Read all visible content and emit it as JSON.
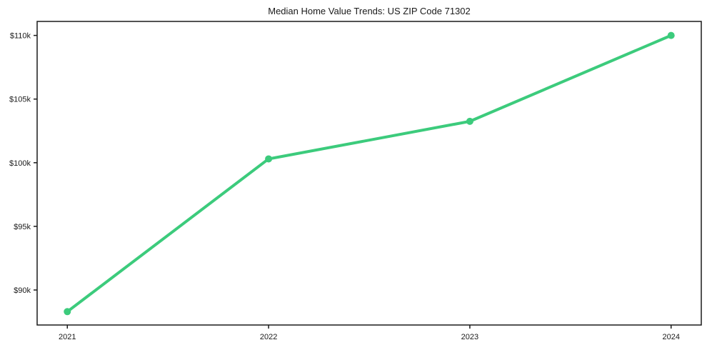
{
  "chart_data": {
    "type": "line",
    "title": "Median Home Value Trends: US ZIP Code 71302",
    "categories": [
      "2021",
      "2022",
      "2023",
      "2024"
    ],
    "values": [
      88300,
      100300,
      103250,
      110000
    ],
    "xlabel": "",
    "ylabel": "",
    "ylim": [
      87250,
      111100
    ],
    "yticks": [
      {
        "value": 90000,
        "label": "$90k"
      },
      {
        "value": 95000,
        "label": "$95k"
      },
      {
        "value": 100000,
        "label": "$100k"
      },
      {
        "value": 105000,
        "label": "$105k"
      },
      {
        "value": 110000,
        "label": "$110k"
      }
    ],
    "grid": false,
    "legend_position": "none",
    "marker": "circle"
  },
  "style": {
    "line_color": "#3ccb7c",
    "marker_color": "#3ccb7c",
    "frame_color": "#1a1a1a",
    "tick_color": "#1a1a1a",
    "text_color": "#1a1a1a",
    "background": "#ffffff"
  }
}
